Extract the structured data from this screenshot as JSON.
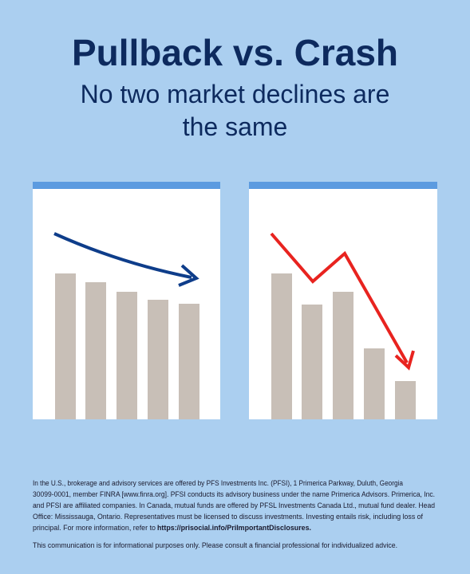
{
  "header": {
    "title": "Pullback vs. Crash",
    "subtitle_lines": [
      "No two market declines are",
      "the same"
    ]
  },
  "disclaimer": {
    "lines": [
      "In the U.S., brokerage and advisory services are offered by PFS Investments Inc. (PFSI), 1 Primerica Parkway, Duluth, Georgia",
      "30099-0001, member FINRA [www.finra.org]. PFSI conducts its advisory business under the name Primerica Advisors. Primerica, Inc.",
      "and PFSI are affiliated companies. In Canada, mutual funds are offered by PFSL Investments Canada Ltd., mutual fund dealer. Head",
      "Office: Mississauga, Ontario. Representatives must be licensed to discuss investments. Investing entails risk, including loss of",
      "principal. For more information, refer to "
    ],
    "link": "https://prisocial.info/PriImportantDisclosures.",
    "note": "This communication is for informational purposes only. Please consult a financial professional for individualized advice."
  }
}
